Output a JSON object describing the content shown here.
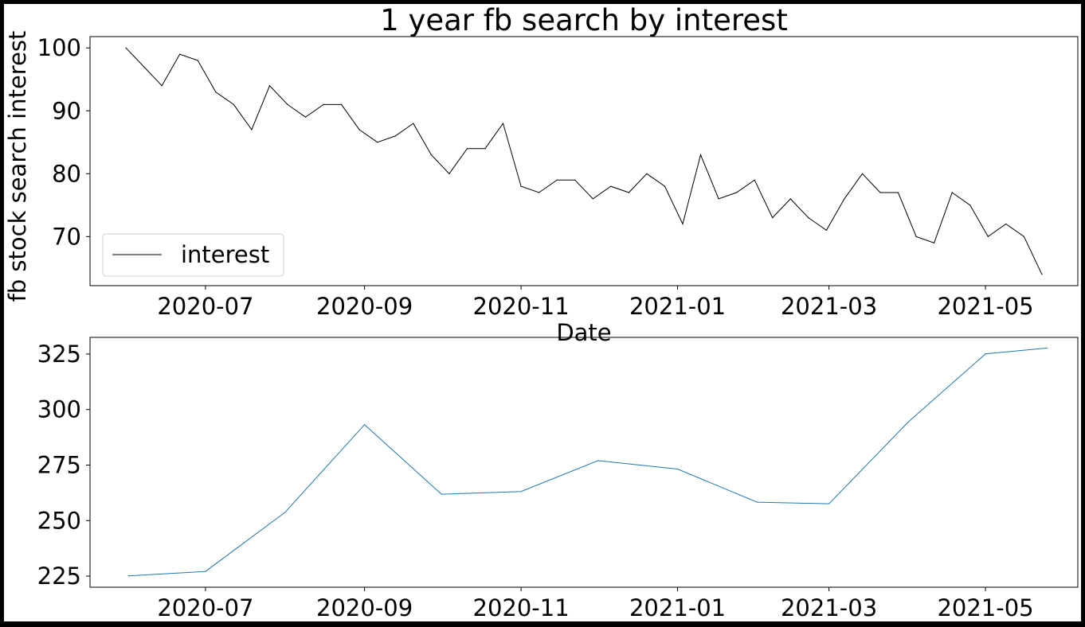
{
  "chart_data": [
    {
      "type": "line",
      "title": "1 year fb search by interest",
      "xlabel": "Date",
      "ylabel": "fb stock search interest",
      "x_tick_labels": [
        "2020-07",
        "2020-09",
        "2020-11",
        "2021-01",
        "2021-03",
        "2021-05"
      ],
      "y_ticks": [
        70,
        80,
        90,
        100
      ],
      "ylim": [
        62.2,
        101.8
      ],
      "grid": false,
      "legend": {
        "position": "lower-left",
        "entries": [
          "interest"
        ]
      },
      "series": [
        {
          "name": "interest",
          "color": "#000000",
          "points": [
            [
              "2020-05-31",
              100
            ],
            [
              "2020-06-07",
              97
            ],
            [
              "2020-06-14",
              94
            ],
            [
              "2020-06-21",
              99
            ],
            [
              "2020-06-28",
              98
            ],
            [
              "2020-07-05",
              93
            ],
            [
              "2020-07-12",
              91
            ],
            [
              "2020-07-19",
              87
            ],
            [
              "2020-07-26",
              94
            ],
            [
              "2020-08-02",
              91
            ],
            [
              "2020-08-09",
              89
            ],
            [
              "2020-08-16",
              91
            ],
            [
              "2020-08-23",
              91
            ],
            [
              "2020-08-30",
              87
            ],
            [
              "2020-09-06",
              85
            ],
            [
              "2020-09-13",
              86
            ],
            [
              "2020-09-20",
              88
            ],
            [
              "2020-09-27",
              83
            ],
            [
              "2020-10-04",
              80
            ],
            [
              "2020-10-11",
              84
            ],
            [
              "2020-10-18",
              84
            ],
            [
              "2020-10-25",
              88
            ],
            [
              "2020-11-01",
              78
            ],
            [
              "2020-11-08",
              77
            ],
            [
              "2020-11-15",
              79
            ],
            [
              "2020-11-22",
              79
            ],
            [
              "2020-11-29",
              76
            ],
            [
              "2020-12-06",
              78
            ],
            [
              "2020-12-13",
              77
            ],
            [
              "2020-12-20",
              80
            ],
            [
              "2020-12-27",
              78
            ],
            [
              "2021-01-03",
              72
            ],
            [
              "2021-01-10",
              83
            ],
            [
              "2021-01-17",
              76
            ],
            [
              "2021-01-24",
              77
            ],
            [
              "2021-01-31",
              79
            ],
            [
              "2021-02-07",
              73
            ],
            [
              "2021-02-14",
              76
            ],
            [
              "2021-02-21",
              73
            ],
            [
              "2021-02-28",
              71
            ],
            [
              "2021-03-07",
              76
            ],
            [
              "2021-03-14",
              80
            ],
            [
              "2021-03-21",
              77
            ],
            [
              "2021-03-28",
              77
            ],
            [
              "2021-04-04",
              70
            ],
            [
              "2021-04-11",
              69
            ],
            [
              "2021-04-18",
              77
            ],
            [
              "2021-04-25",
              75
            ],
            [
              "2021-05-02",
              70
            ],
            [
              "2021-05-09",
              72
            ],
            [
              "2021-05-16",
              70
            ],
            [
              "2021-05-23",
              64
            ]
          ]
        }
      ]
    },
    {
      "type": "line",
      "title": "",
      "xlabel": "",
      "ylabel": "",
      "x_tick_labels": [
        "2020-07",
        "2020-09",
        "2020-11",
        "2021-01",
        "2021-03",
        "2021-05"
      ],
      "y_ticks": [
        225,
        250,
        275,
        300,
        325
      ],
      "ylim": [
        220,
        332.5
      ],
      "grid": false,
      "series": [
        {
          "color": "#1f77b4",
          "points": [
            [
              "2020-06-01",
              225.1
            ],
            [
              "2020-07-01",
              227.1
            ],
            [
              "2020-08-01",
              253.7
            ],
            [
              "2020-09-01",
              293.2
            ],
            [
              "2020-10-01",
              261.9
            ],
            [
              "2020-11-01",
              263.1
            ],
            [
              "2020-12-01",
              277.0
            ],
            [
              "2021-01-01",
              273.2
            ],
            [
              "2021-02-01",
              258.3
            ],
            [
              "2021-03-01",
              257.6
            ],
            [
              "2021-04-01",
              294.5
            ],
            [
              "2021-05-01",
              325.1
            ],
            [
              "2021-05-25",
              327.7
            ]
          ]
        }
      ]
    }
  ]
}
